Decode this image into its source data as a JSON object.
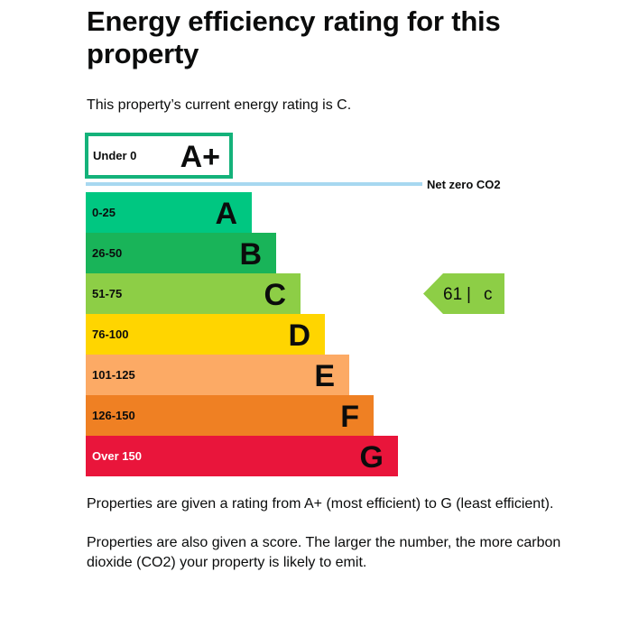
{
  "heading": {
    "title": "Energy efficiency rating for this property"
  },
  "intro": {
    "text": "This property’s current energy rating is C."
  },
  "chart_data": {
    "type": "bar",
    "title": "Energy efficiency rating",
    "categories": [
      "A+",
      "A",
      "B",
      "C",
      "D",
      "E",
      "F",
      "G"
    ],
    "bands": [
      {
        "letter": "A+",
        "range": "Under 0",
        "color": "#14b27a",
        "style": "outline"
      },
      {
        "letter": "A",
        "range": "0-25",
        "color": "#00c781",
        "style": "fill"
      },
      {
        "letter": "B",
        "range": "26-50",
        "color": "#19b459",
        "style": "fill"
      },
      {
        "letter": "C",
        "range": "51-75",
        "color": "#8dce46",
        "style": "fill"
      },
      {
        "letter": "D",
        "range": "76-100",
        "color": "#ffd500",
        "style": "fill"
      },
      {
        "letter": "E",
        "range": "101-125",
        "color": "#fcaa65",
        "style": "fill"
      },
      {
        "letter": "F",
        "range": "126-150",
        "color": "#ef8023",
        "style": "fill"
      },
      {
        "letter": "G",
        "range": "Over 150",
        "color": "#e9153b",
        "style": "fill"
      }
    ],
    "net_zero": {
      "label": "Net zero CO2",
      "color": "#a7d8f0"
    },
    "current_rating": {
      "score": 61,
      "separator": "|",
      "letter": "C",
      "color": "#8dce46"
    }
  },
  "notes": {
    "rating_explanation": "Properties are given a rating from A+ (most efficient) to G (least efficient).",
    "score_explanation": "Properties are also given a score. The larger the number, the more carbon dioxide (CO2) your property is likely to emit."
  }
}
